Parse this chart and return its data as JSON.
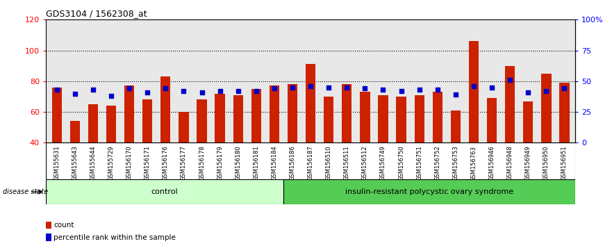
{
  "title": "GDS3104 / 1562308_at",
  "samples": [
    "GSM155631",
    "GSM155643",
    "GSM155644",
    "GSM155729",
    "GSM156170",
    "GSM156171",
    "GSM156176",
    "GSM156177",
    "GSM156178",
    "GSM156179",
    "GSM156180",
    "GSM156181",
    "GSM156184",
    "GSM156186",
    "GSM156187",
    "GSM156510",
    "GSM156511",
    "GSM156512",
    "GSM156749",
    "GSM156750",
    "GSM156751",
    "GSM156752",
    "GSM156753",
    "GSM156763",
    "GSM156946",
    "GSM156948",
    "GSM156949",
    "GSM156950",
    "GSM156951"
  ],
  "counts": [
    76,
    54,
    65,
    64,
    77,
    68,
    83,
    60,
    68,
    72,
    71,
    75,
    77,
    78,
    91,
    70,
    78,
    73,
    71,
    70,
    71,
    73,
    61,
    106,
    69,
    90,
    67,
    85,
    79
  ],
  "percentile_ranks_pct": [
    43,
    40,
    43,
    38,
    44,
    41,
    44,
    42,
    41,
    42,
    42,
    42,
    44,
    45,
    46,
    45,
    45,
    44,
    43,
    42,
    43,
    43,
    39,
    46,
    45,
    51,
    41,
    42,
    44
  ],
  "n_control": 13,
  "n_disease": 16,
  "control_label": "control",
  "disease_label": "insulin-resistant polycystic ovary syndrome",
  "ylim_left": [
    40,
    120
  ],
  "ylim_right": [
    0,
    100
  ],
  "yticks_left": [
    40,
    60,
    80,
    100,
    120
  ],
  "yticks_right": [
    0,
    25,
    50,
    75,
    100
  ],
  "yticklabels_right": [
    "0",
    "25",
    "50",
    "75",
    "100%"
  ],
  "bar_color": "#cc2200",
  "dot_color": "#0000cc",
  "control_bg": "#ccffcc",
  "disease_bg": "#55cc55",
  "legend_count_label": "count",
  "legend_pct_label": "percentile rank within the sample",
  "bar_width": 0.55,
  "axis_bg": "#e8e8e8"
}
